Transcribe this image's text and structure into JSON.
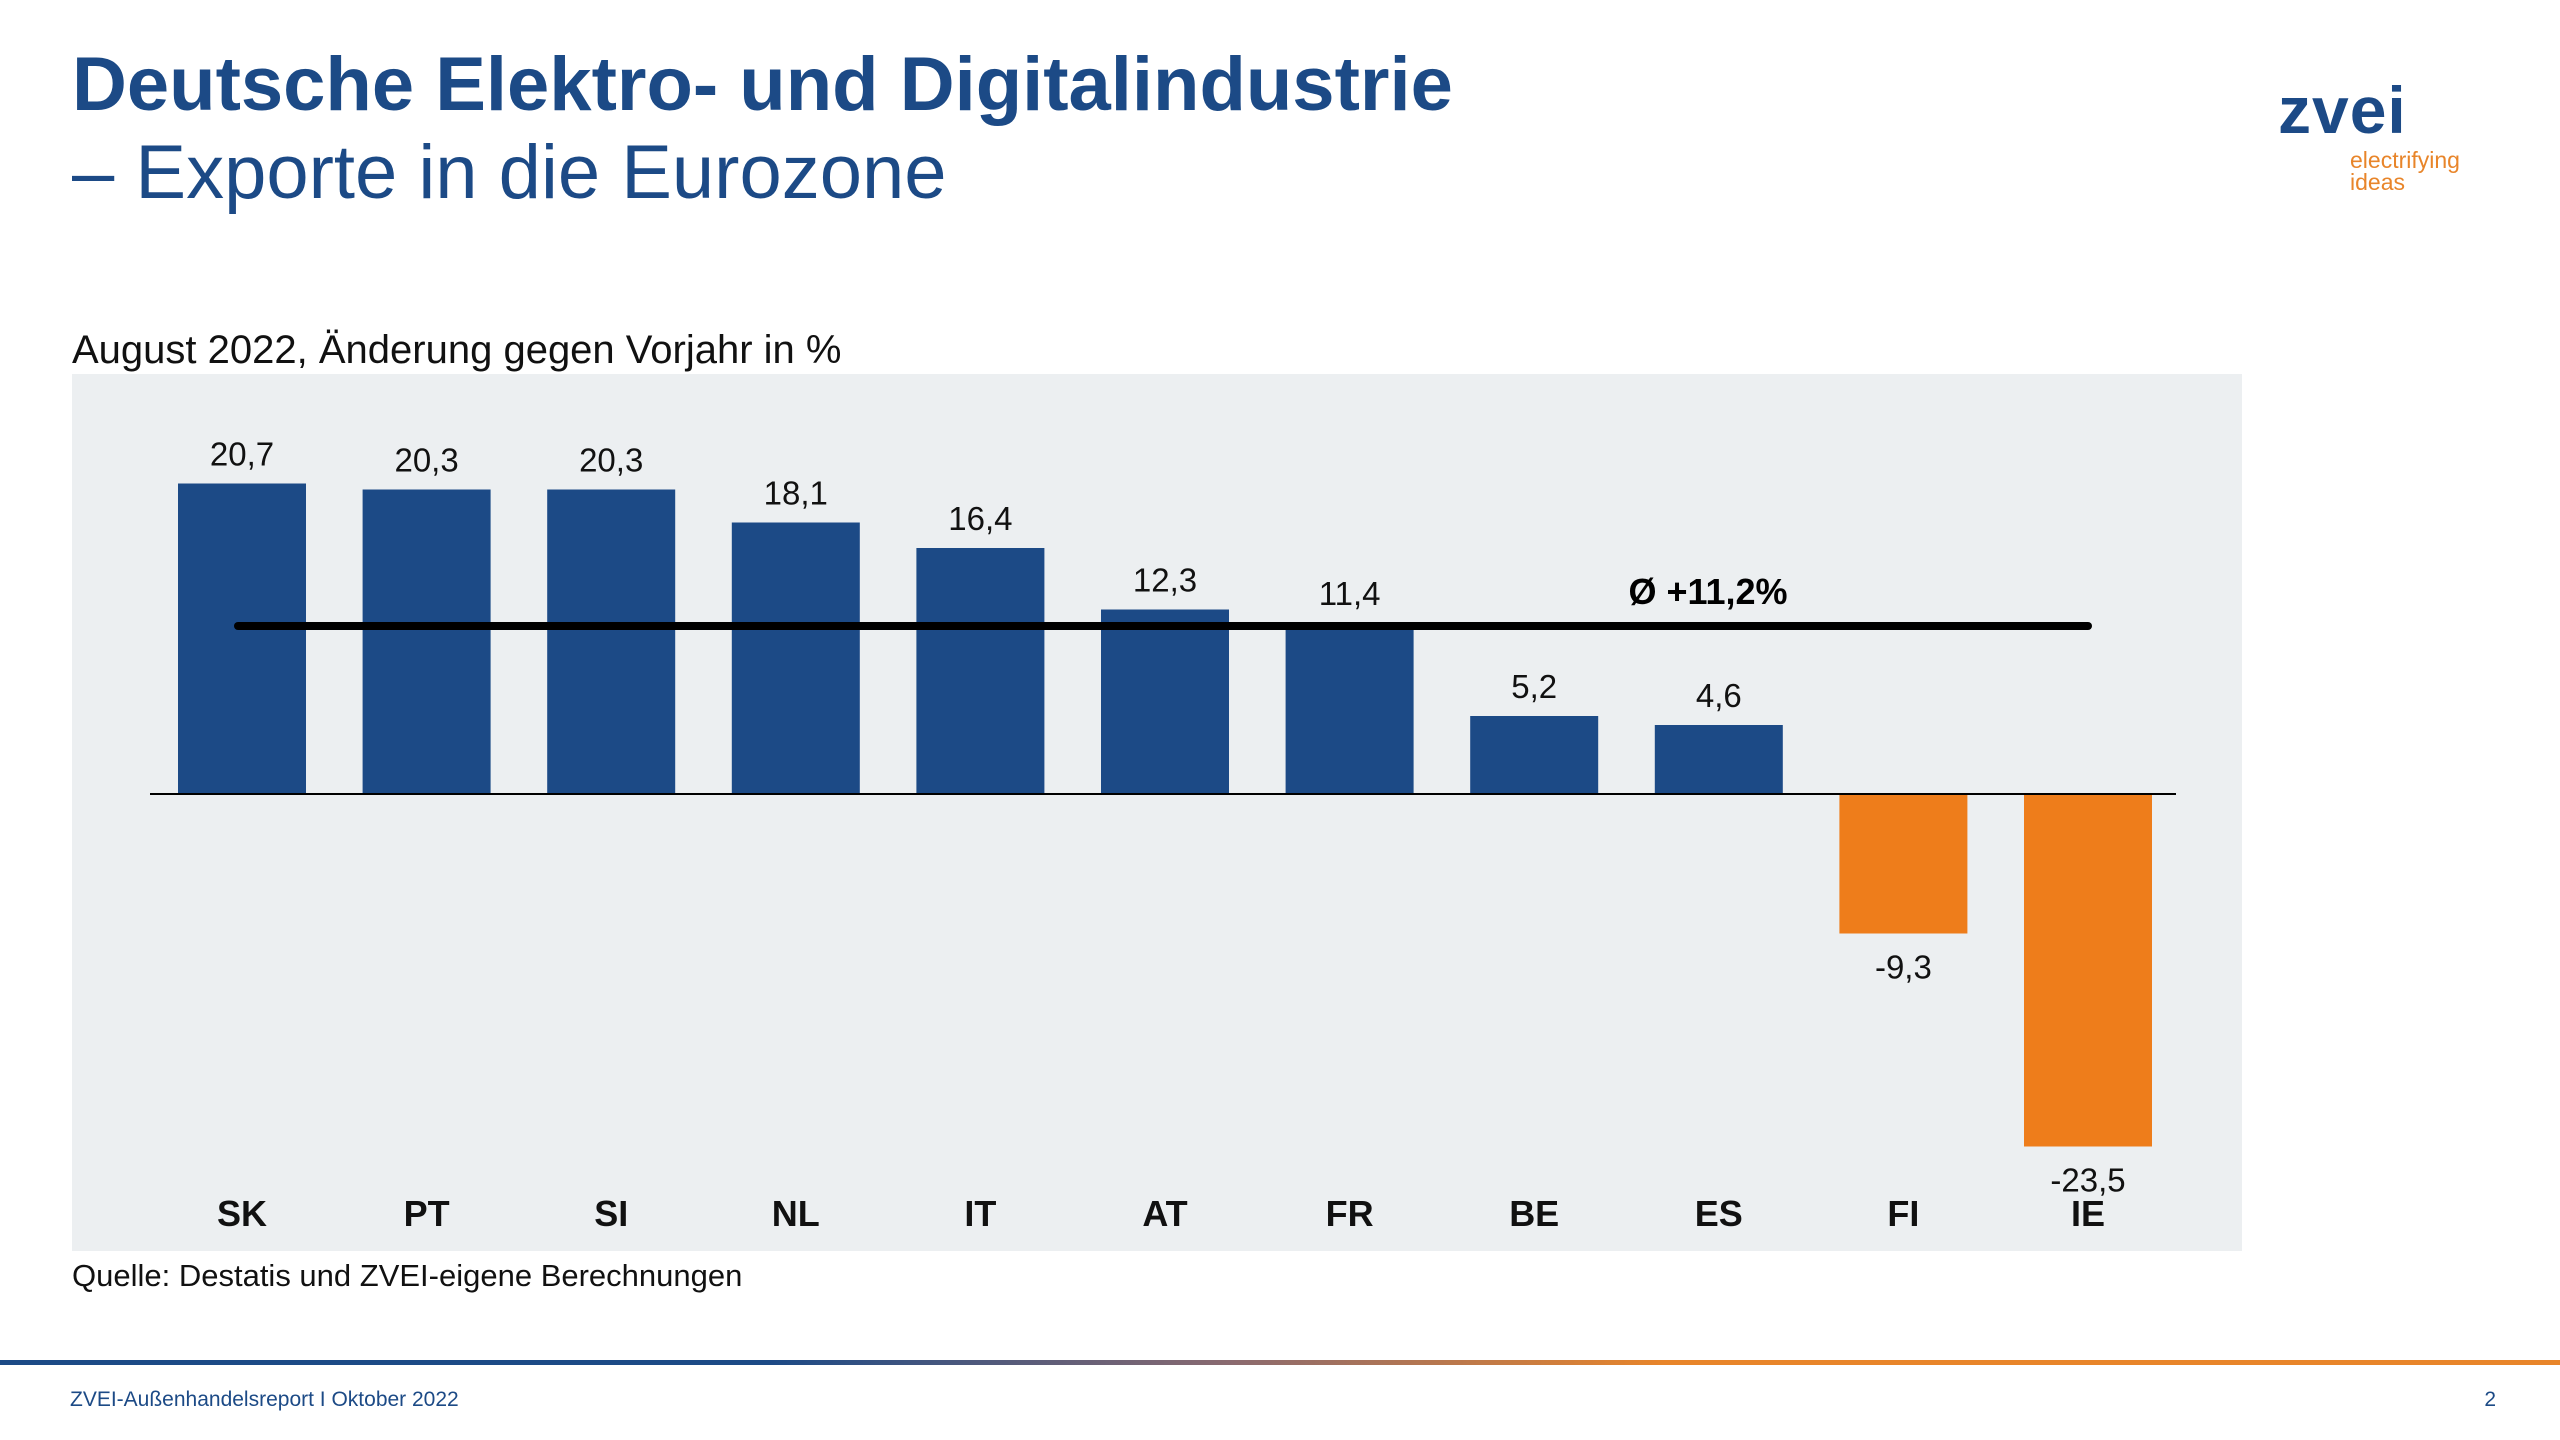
{
  "header": {
    "title": "Deutsche Elektro- und Digitalindustrie",
    "subtitle": "– Exporte in die Eurozone"
  },
  "logo": {
    "wordmark": "zvei",
    "tagline_1": "electrifying",
    "tagline_2": "ideas"
  },
  "chart_data": {
    "type": "bar",
    "title": "August 2022, Änderung gegen Vorjahr in %",
    "categories": [
      "SK",
      "PT",
      "SI",
      "NL",
      "IT",
      "AT",
      "FR",
      "BE",
      "ES",
      "FI",
      "IE"
    ],
    "values": [
      20.7,
      20.3,
      20.3,
      18.1,
      16.4,
      12.3,
      11.4,
      5.2,
      4.6,
      -9.3,
      -23.5
    ],
    "data_labels": [
      "20,7",
      "20,3",
      "20,3",
      "18,1",
      "16,4",
      "12,3",
      "11,4",
      "5,2",
      "4,6",
      "-9,3",
      "-23,5"
    ],
    "average": {
      "value": 11.2,
      "label": "Ø +11,2%"
    },
    "colors": {
      "positive": "#1c4a86",
      "negative": "#ee7d1b",
      "background": "#eceff1",
      "average_line": "#000000"
    },
    "grid": false,
    "legend": "none"
  },
  "source": "Quelle: Destatis und ZVEI-eigene Berechnungen",
  "footer": {
    "text": "ZVEI-Außenhandelsreport I Oktober 2022",
    "page": "2"
  }
}
